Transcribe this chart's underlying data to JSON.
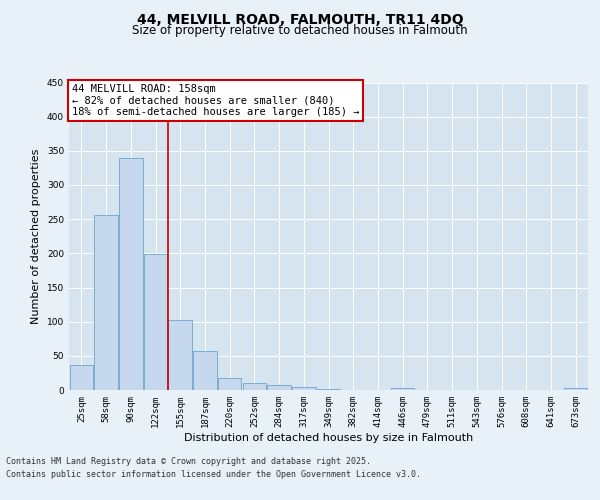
{
  "title": "44, MELVILL ROAD, FALMOUTH, TR11 4DQ",
  "subtitle": "Size of property relative to detached houses in Falmouth",
  "xlabel": "Distribution of detached houses by size in Falmouth",
  "ylabel": "Number of detached properties",
  "categories": [
    "25sqm",
    "58sqm",
    "90sqm",
    "122sqm",
    "155sqm",
    "187sqm",
    "220sqm",
    "252sqm",
    "284sqm",
    "317sqm",
    "349sqm",
    "382sqm",
    "414sqm",
    "446sqm",
    "479sqm",
    "511sqm",
    "543sqm",
    "576sqm",
    "608sqm",
    "641sqm",
    "673sqm"
  ],
  "values": [
    36,
    256,
    340,
    199,
    103,
    57,
    18,
    10,
    7,
    4,
    1,
    0,
    0,
    3,
    0,
    0,
    0,
    0,
    0,
    0,
    3
  ],
  "bar_color": "#c5d8ed",
  "bar_edge_color": "#7aadd4",
  "vline_x": 3.5,
  "vline_color": "#cc0000",
  "annotation_box_text": "44 MELVILL ROAD: 158sqm\n← 82% of detached houses are smaller (840)\n18% of semi-detached houses are larger (185) →",
  "box_edge_color": "#cc0000",
  "ylim": [
    0,
    450
  ],
  "yticks": [
    0,
    50,
    100,
    150,
    200,
    250,
    300,
    350,
    400,
    450
  ],
  "background_color": "#e8f0f8",
  "plot_bg_color": "#d6e4f0",
  "grid_color": "#ffffff",
  "footer_line1": "Contains HM Land Registry data © Crown copyright and database right 2025.",
  "footer_line2": "Contains public sector information licensed under the Open Government Licence v3.0.",
  "title_fontsize": 10,
  "subtitle_fontsize": 8.5,
  "footer_fontsize": 6,
  "tick_fontsize": 6.5,
  "ylabel_fontsize": 8,
  "xlabel_fontsize": 8,
  "annotation_fontsize": 7.5
}
